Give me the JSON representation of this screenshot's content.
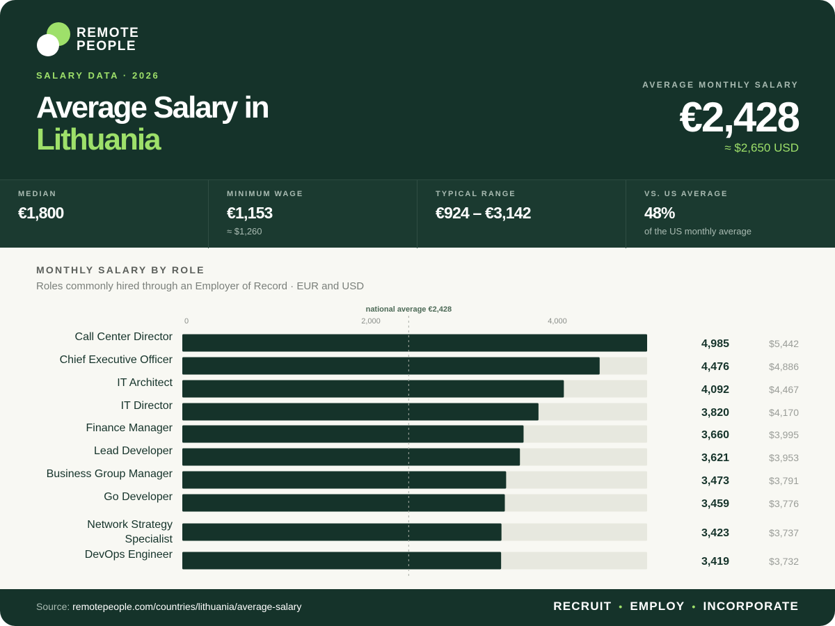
{
  "brand": {
    "line1": "REMOTE",
    "line2": "PEOPLE"
  },
  "header": {
    "eyebrow": "SALARY DATA · 2026",
    "title_line1": "Average Salary in",
    "title_line2": "Lithuania",
    "hero_label": "AVERAGE MONTHLY SALARY",
    "hero_value": "€2,428",
    "hero_sub": "≈ $2,650 USD"
  },
  "stats": [
    {
      "label": "MEDIAN",
      "value": "€1,800",
      "sub": ""
    },
    {
      "label": "MINIMUM WAGE",
      "value": "€1,153",
      "sub": "≈ $1,260"
    },
    {
      "label": "TYPICAL RANGE",
      "value": "€924 – €3,142",
      "sub": ""
    },
    {
      "label": "VS. US AVERAGE",
      "value": "48%",
      "sub": "of the US monthly average"
    }
  ],
  "section": {
    "title": "MONTHLY SALARY BY ROLE",
    "subtitle": "Roles commonly hired through an Employer of Record · EUR and USD"
  },
  "chart_data": {
    "type": "bar",
    "orientation": "horizontal",
    "xlim": [
      0,
      4985
    ],
    "ticks": [
      0,
      2000,
      4000
    ],
    "tick_labels": [
      "0",
      "2,000",
      "4,000"
    ],
    "reference_line": {
      "value": 2428,
      "label": "national average €2,428"
    },
    "categories": [
      "Call Center Director",
      "Chief Executive Officer",
      "IT Architect",
      "IT Director",
      "Finance Manager",
      "Lead Developer",
      "Business Group Manager",
      "Go Developer",
      "Network Strategy Specialist",
      "DevOps Engineer"
    ],
    "values": [
      4985,
      4476,
      4092,
      3820,
      3660,
      3621,
      3473,
      3459,
      3423,
      3419
    ],
    "value_labels": [
      "4,985",
      "4,476",
      "4,092",
      "3,820",
      "3,660",
      "3,621",
      "3,473",
      "3,459",
      "3,423",
      "3,419"
    ],
    "usd_labels": [
      "$5,442",
      "$4,886",
      "$4,467",
      "$4,170",
      "$3,995",
      "$3,953",
      "$3,791",
      "$3,776",
      "$3,737",
      "$3,732"
    ],
    "colors": {
      "bar": "#15332a",
      "track": "#e7e8df",
      "reference": "#a9ada6"
    }
  },
  "footer": {
    "source_prefix": "Source: ",
    "source_url": "remotepeople.com/countries/lithuania/average-salary",
    "taglines": [
      "RECRUIT",
      "EMPLOY",
      "INCORPORATE"
    ]
  }
}
